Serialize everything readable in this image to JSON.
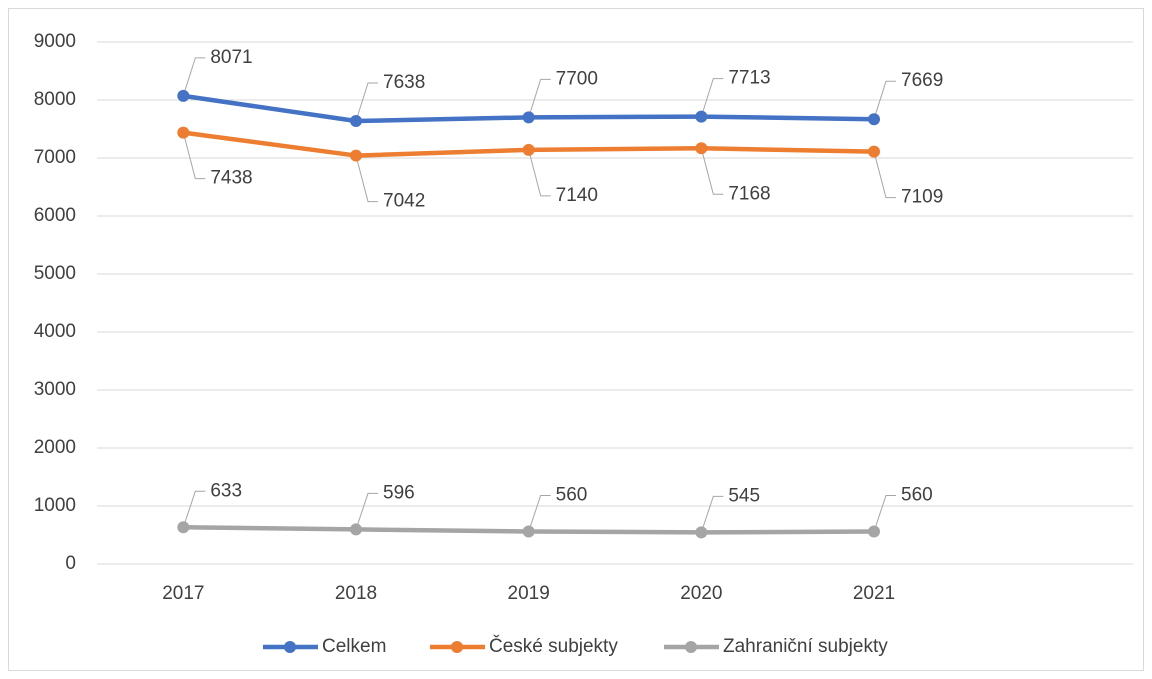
{
  "chart_data": {
    "type": "line",
    "categories": [
      "2017",
      "2018",
      "2019",
      "2020",
      "2021",
      null
    ],
    "series": [
      {
        "name": "Celkem",
        "color": "#4472c4",
        "values": [
          8071,
          7638,
          7700,
          7713,
          7669,
          null
        ]
      },
      {
        "name": "České subjekty",
        "color": "#ed7d31",
        "values": [
          7438,
          7042,
          7140,
          7168,
          7109,
          null
        ]
      },
      {
        "name": "Zahraniční subjekty",
        "color": "#a5a5a5",
        "values": [
          633,
          596,
          560,
          545,
          560,
          null
        ]
      }
    ],
    "ylim": [
      0,
      9000
    ],
    "yticks": [
      0,
      1000,
      2000,
      3000,
      4000,
      5000,
      6000,
      7000,
      8000,
      9000
    ],
    "grid": true,
    "legend": "bottom"
  }
}
